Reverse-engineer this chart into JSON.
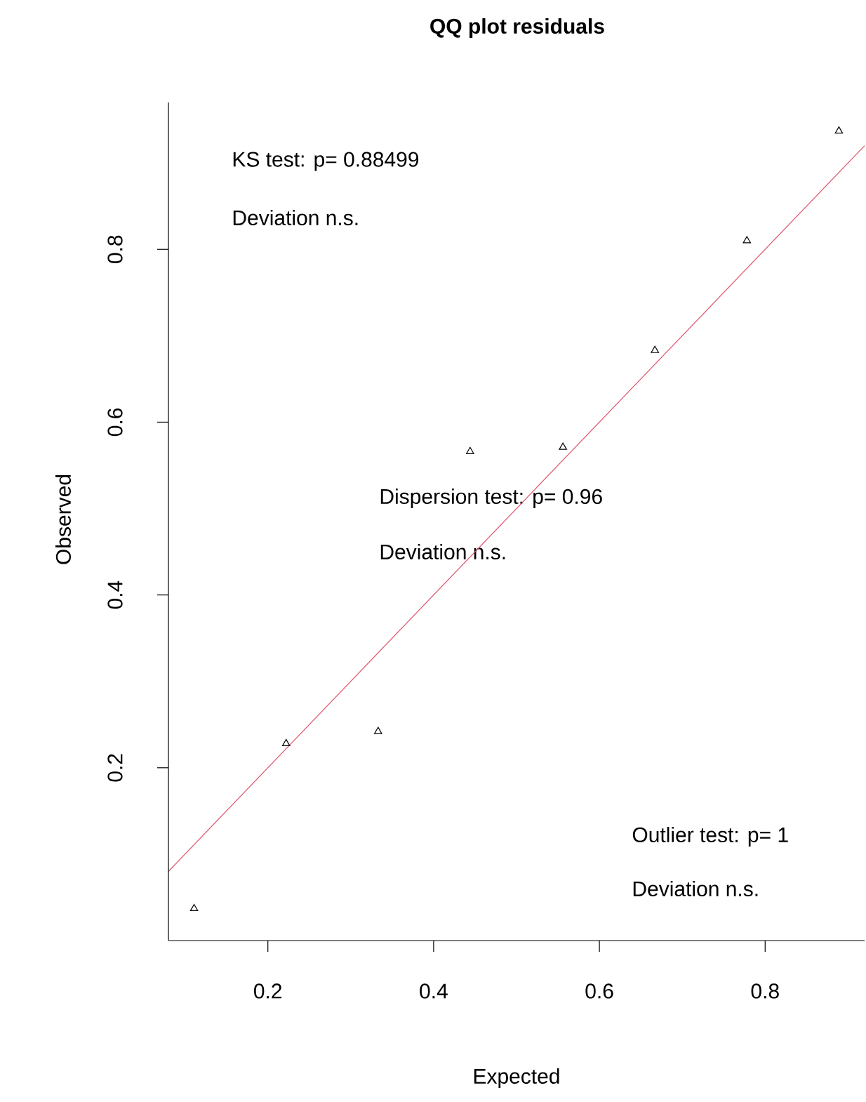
{
  "chart_data": {
    "type": "scatter",
    "title": "QQ plot residuals",
    "xlabel": "Expected",
    "ylabel": "Observed",
    "xlim": [
      0.08,
      0.92
    ],
    "ylim": [
      0.0,
      0.97
    ],
    "xticks": [
      0.2,
      0.4,
      0.6,
      0.8
    ],
    "yticks": [
      0.2,
      0.4,
      0.6,
      0.8
    ],
    "annotations": [
      "KS test: p= 0.88499",
      "Deviation n.s.",
      "Dispersion test: p= 0.96",
      "Deviation n.s.",
      "Outlier test: p= 1",
      "Deviation n.s."
    ],
    "series": [
      {
        "marker": "triangle",
        "color": "#000000",
        "x": [
          0.111,
          0.222,
          0.333,
          0.444,
          0.556,
          0.667,
          0.778,
          0.889
        ],
        "values": [
          0.037,
          0.228,
          0.242,
          0.566,
          0.571,
          0.683,
          0.81,
          0.937
        ]
      },
      {
        "type": "line",
        "color": "#df536b",
        "x": [
          0.08,
          0.92
        ],
        "values": [
          0.08,
          0.92
        ]
      }
    ]
  }
}
